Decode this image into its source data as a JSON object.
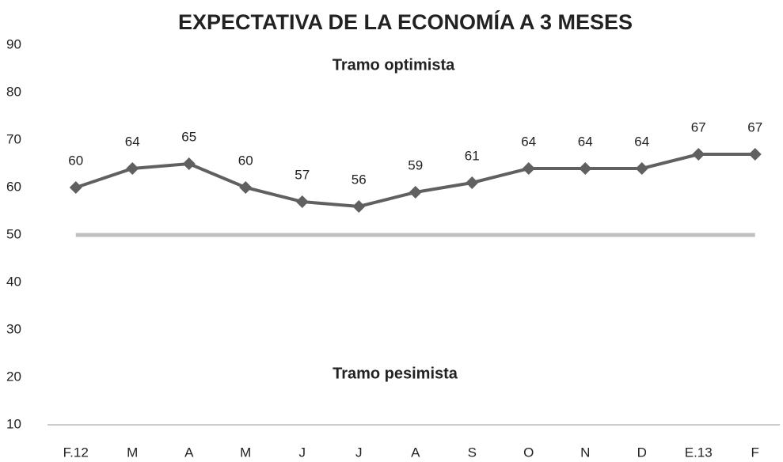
{
  "chart_data": {
    "type": "line",
    "title": "EXPECTATIVA DE LA ECONOMÍA A 3 MESES",
    "annotations": [
      "Tramo optimista",
      "Tramo pesimista"
    ],
    "categories": [
      "F.12",
      "M",
      "A",
      "M",
      "J",
      "J",
      "A",
      "S",
      "O",
      "N",
      "D",
      "E.13",
      "F"
    ],
    "values": [
      60,
      64,
      65,
      60,
      57,
      56,
      59,
      61,
      64,
      64,
      64,
      67,
      67
    ],
    "color": "#606060",
    "reference_line": {
      "value": 50,
      "color": "#bfbfbf"
    },
    "ylim": [
      10,
      90
    ],
    "yticks": [
      10,
      20,
      30,
      40,
      50,
      60,
      70,
      80,
      90
    ],
    "grid": false
  }
}
